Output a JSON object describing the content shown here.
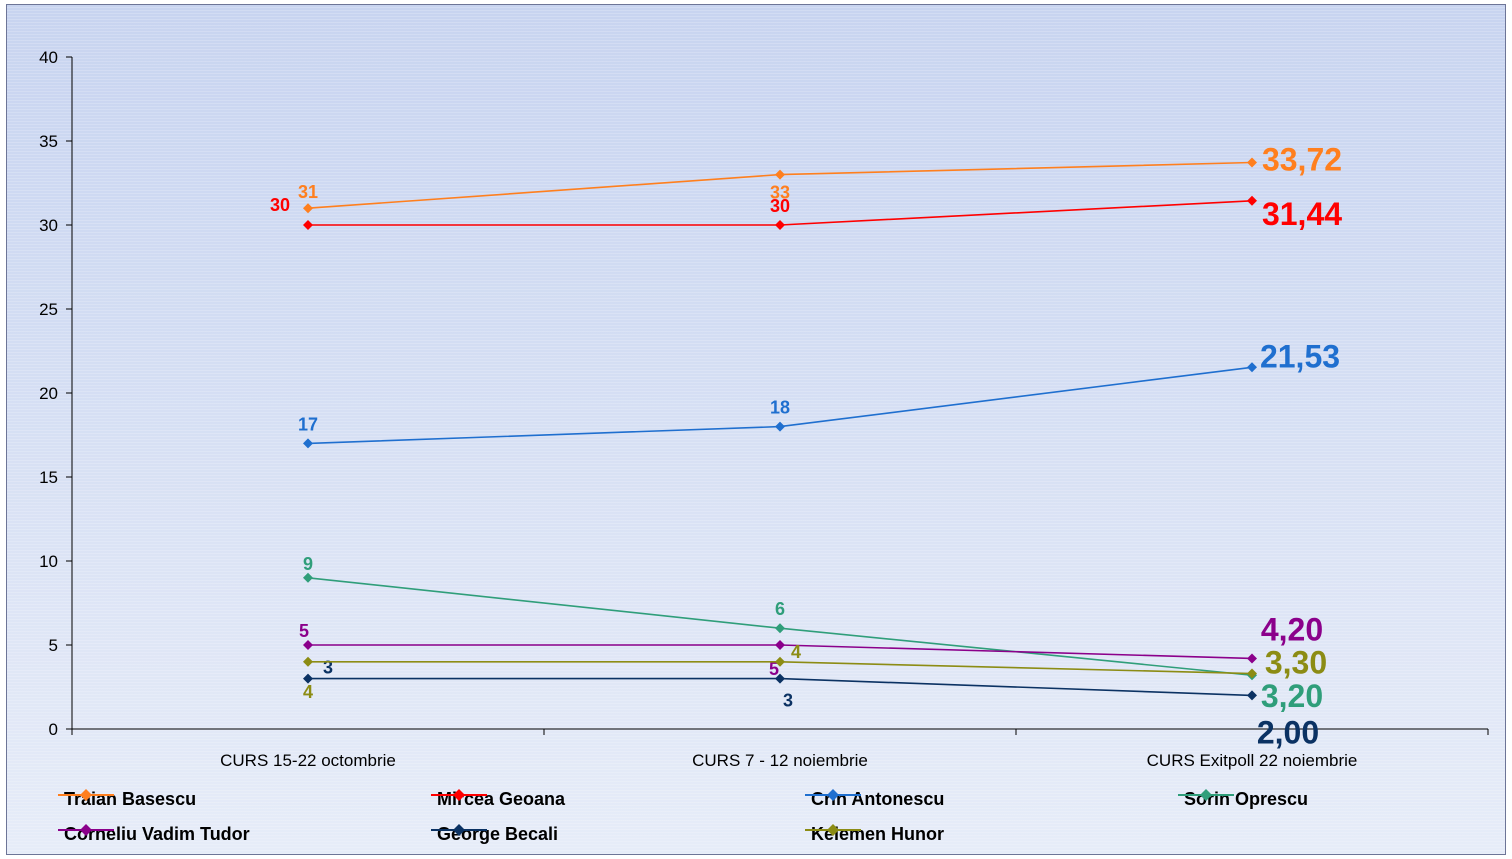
{
  "chart_data": {
    "type": "line",
    "title": "",
    "xlabel": "",
    "ylabel": "",
    "ylim": [
      0,
      40
    ],
    "yticks": [
      "0",
      "5",
      "10",
      "15",
      "20",
      "25",
      "30",
      "35",
      "40"
    ],
    "grid": false,
    "legend_placement": "bottom",
    "categories": [
      "CURS 15-22 octombrie",
      "CURS 7 - 12 noiembrie",
      "CURS Exitpoll 22 noiembrie"
    ],
    "series": [
      {
        "name": "Traian Basescu",
        "color": "#ff7f1e",
        "values": [
          31,
          33,
          33.72
        ],
        "labels": [
          "31",
          "33",
          "33,72"
        ]
      },
      {
        "name": "Mircea Geoana",
        "color": "#ff0000",
        "values": [
          30,
          30,
          31.44
        ],
        "labels": [
          "30",
          "30",
          "31,44"
        ]
      },
      {
        "name": "Crin Antonescu",
        "color": "#1f6fcf",
        "values": [
          17,
          18,
          21.53
        ],
        "labels": [
          "17",
          "18",
          "21,53"
        ]
      },
      {
        "name": "Sorin Oprescu",
        "color": "#2f9e7a",
        "values": [
          9,
          6,
          3.2
        ],
        "labels": [
          "9",
          "6",
          "3,20"
        ]
      },
      {
        "name": "Corneliu Vadim Tudor",
        "color": "#8b008b",
        "values": [
          5,
          5,
          4.2
        ],
        "labels": [
          "5",
          "5",
          "4,20"
        ]
      },
      {
        "name": "George Becali",
        "color": "#0b3263",
        "values": [
          3,
          3,
          2.0
        ],
        "labels": [
          "3",
          "3",
          "2,00"
        ]
      },
      {
        "name": "Kelemen Hunor",
        "color": "#8c8c14",
        "values": [
          4,
          4,
          3.3
        ],
        "labels": [
          "4",
          "4",
          "3,30"
        ]
      }
    ]
  }
}
